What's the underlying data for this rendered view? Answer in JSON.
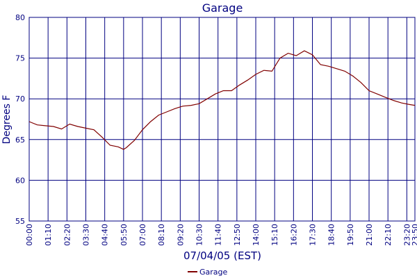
{
  "chart_data": {
    "type": "line",
    "title": "Garage",
    "xlabel": "07/04/05 (EST)",
    "ylabel": "Degrees F",
    "x": [
      0,
      30,
      60,
      90,
      120,
      150,
      180,
      210,
      240,
      270,
      300,
      330,
      350,
      360,
      390,
      420,
      450,
      480,
      510,
      540,
      570,
      600,
      630,
      660,
      690,
      720,
      750,
      780,
      810,
      840,
      870,
      900,
      930,
      960,
      990,
      1020,
      1050,
      1080,
      1110,
      1140,
      1170,
      1200,
      1230,
      1260,
      1290,
      1320,
      1350,
      1380,
      1410,
      1430
    ],
    "series": [
      {
        "name": "Garage",
        "color": "#800000",
        "values": [
          67.2,
          66.8,
          66.7,
          66.6,
          66.3,
          66.9,
          66.6,
          66.4,
          66.2,
          65.3,
          64.3,
          64.1,
          63.8,
          64.0,
          64.9,
          66.2,
          67.2,
          68.0,
          68.4,
          68.8,
          69.1,
          69.2,
          69.4,
          70.0,
          70.6,
          71.0,
          71.0,
          71.7,
          72.3,
          73.0,
          73.5,
          73.4,
          75.0,
          75.6,
          75.3,
          75.9,
          75.4,
          74.2,
          74.0,
          73.7,
          73.4,
          72.8,
          72.0,
          71.0,
          70.6,
          70.2,
          69.8,
          69.5,
          69.3,
          69.2
        ]
      }
    ],
    "xlim": [
      0,
      1430
    ],
    "xticks": [
      {
        "value": 0,
        "label": "00:00"
      },
      {
        "value": 70,
        "label": "01:10"
      },
      {
        "value": 140,
        "label": "02:20"
      },
      {
        "value": 210,
        "label": "03:30"
      },
      {
        "value": 280,
        "label": "04:40"
      },
      {
        "value": 350,
        "label": "05:50"
      },
      {
        "value": 420,
        "label": "07:00"
      },
      {
        "value": 490,
        "label": "08:10"
      },
      {
        "value": 560,
        "label": "09:20"
      },
      {
        "value": 630,
        "label": "10:30"
      },
      {
        "value": 700,
        "label": "11:40"
      },
      {
        "value": 770,
        "label": "12:50"
      },
      {
        "value": 840,
        "label": "14:00"
      },
      {
        "value": 910,
        "label": "15:10"
      },
      {
        "value": 980,
        "label": "16:20"
      },
      {
        "value": 1050,
        "label": "17:30"
      },
      {
        "value": 1120,
        "label": "18:40"
      },
      {
        "value": 1190,
        "label": "19:50"
      },
      {
        "value": 1260,
        "label": "21:00"
      },
      {
        "value": 1330,
        "label": "22:10"
      },
      {
        "value": 1400,
        "label": "23:20"
      },
      {
        "value": 1430,
        "label": "23:50"
      }
    ],
    "ylim": [
      55,
      80
    ],
    "yticks": [
      55,
      60,
      65,
      70,
      75,
      80
    ],
    "grid": true
  }
}
